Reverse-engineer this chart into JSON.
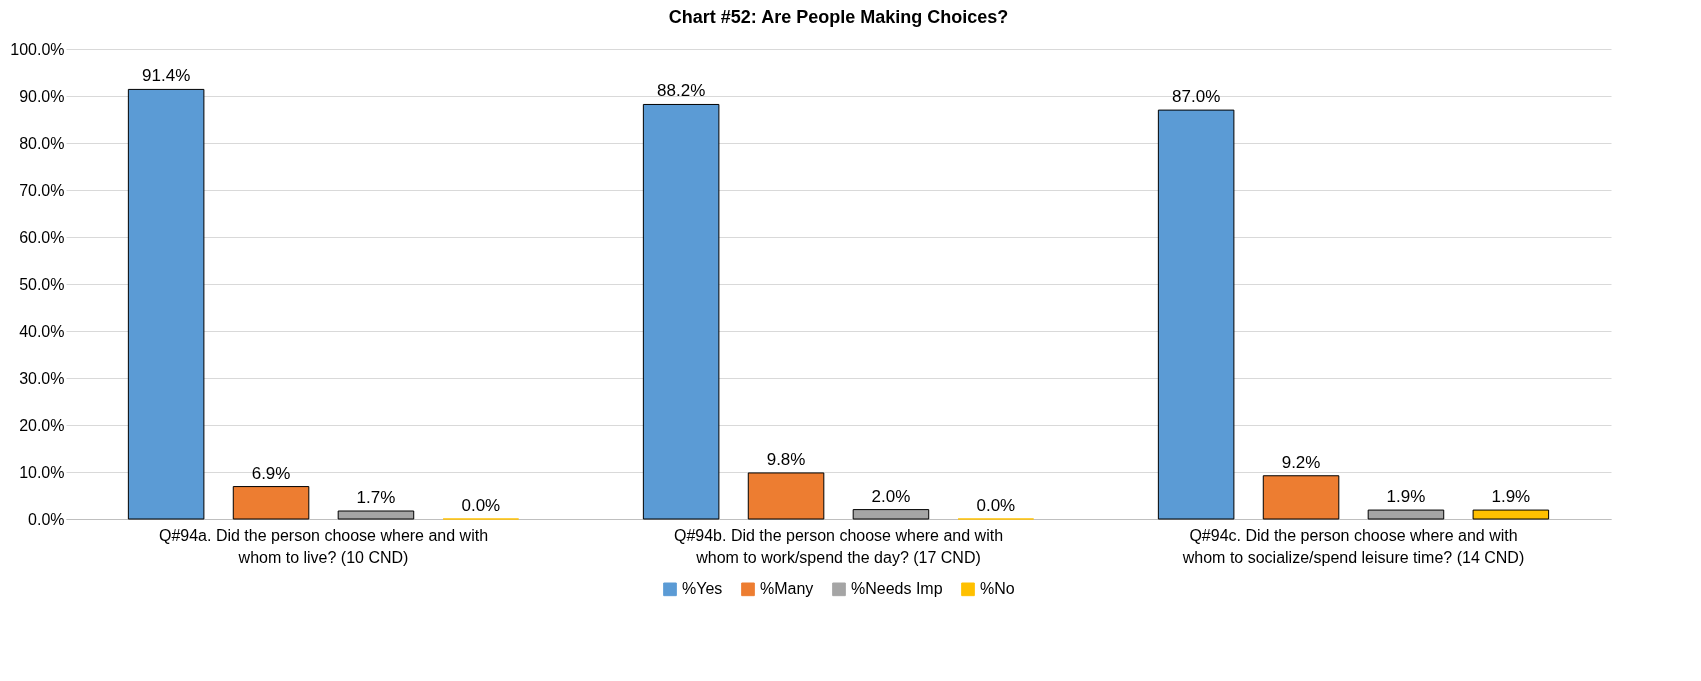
{
  "chart_data": {
    "type": "bar",
    "title": "Chart #52: Are People Making Choices?",
    "categories": [
      "Q#94a. Did the person choose where and with whom to live? (10 CND)",
      "Q#94b. Did the person choose where and with whom to work/spend the day? (17 CND)",
      "Q#94c. Did the person choose where and with whom to socialize/spend leisure time? (14 CND)"
    ],
    "series": [
      {
        "name": "%Yes",
        "color": "#5b9bd5",
        "values": [
          91.4,
          88.2,
          87.0
        ],
        "value_labels": [
          "91.4%",
          "88.2%",
          "87.0%"
        ]
      },
      {
        "name": "%Many",
        "color": "#ed7d31",
        "values": [
          6.9,
          9.8,
          9.2
        ],
        "value_labels": [
          "6.9%",
          "9.8%",
          "9.2%"
        ]
      },
      {
        "name": "%Needs Imp",
        "color": "#a5a5a5",
        "values": [
          1.7,
          2.0,
          1.9
        ],
        "value_labels": [
          "1.7%",
          "2.0%",
          "1.9%"
        ]
      },
      {
        "name": "%No",
        "color": "#ffc000",
        "values": [
          0.0,
          0.0,
          1.9
        ],
        "value_labels": [
          "0.0%",
          "0.0%",
          "1.9%"
        ]
      }
    ],
    "ylim": [
      0,
      100
    ],
    "yticks": [
      {
        "value": 0,
        "label": "0.0%"
      },
      {
        "value": 10,
        "label": "10.0%"
      },
      {
        "value": 20,
        "label": "20.0%"
      },
      {
        "value": 30,
        "label": "30.0%"
      },
      {
        "value": 40,
        "label": "40.0%"
      },
      {
        "value": 50,
        "label": "50.0%"
      },
      {
        "value": 60,
        "label": "60.0%"
      },
      {
        "value": 70,
        "label": "70.0%"
      },
      {
        "value": 80,
        "label": "80.0%"
      },
      {
        "value": 90,
        "label": "90.0%"
      },
      {
        "value": 100,
        "label": "100.0%"
      }
    ],
    "grid": "y",
    "legend": "bottom"
  }
}
